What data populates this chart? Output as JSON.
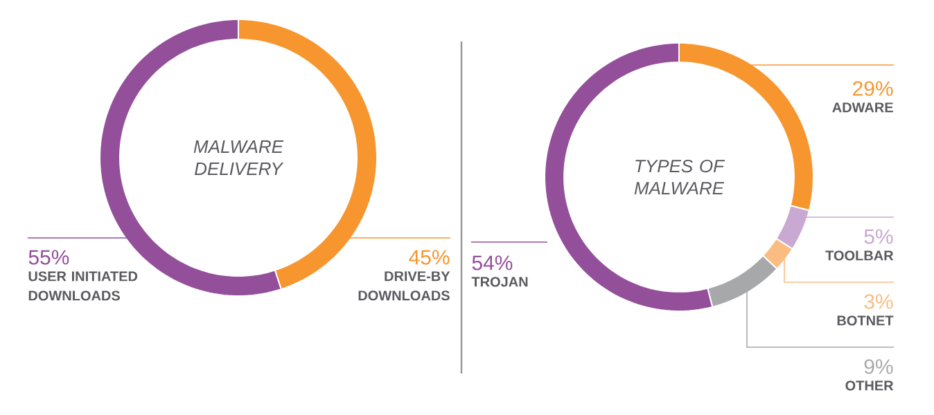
{
  "chart_data": [
    {
      "type": "donut",
      "title": "MALWARE DELIVERY",
      "categories": [
        "DRIVE-BY DOWNLOADS",
        "USER INITIATED DOWNLOADS"
      ],
      "values": [
        45,
        55
      ],
      "colors": [
        "#f7962f",
        "#944f9b"
      ],
      "value_labels": [
        "45%",
        "55%"
      ]
    },
    {
      "type": "donut",
      "title": "TYPES OF MALWARE",
      "categories": [
        "ADWARE",
        "TOOLBAR",
        "BOTNET",
        "OTHER",
        "TROJAN"
      ],
      "values": [
        29,
        5,
        3,
        9,
        54
      ],
      "colors": [
        "#f7962f",
        "#c9a8d1",
        "#fbbc81",
        "#a7a8aa",
        "#944f9b"
      ],
      "value_labels": [
        "29%",
        "5%",
        "3%",
        "9%",
        "54%"
      ]
    }
  ]
}
